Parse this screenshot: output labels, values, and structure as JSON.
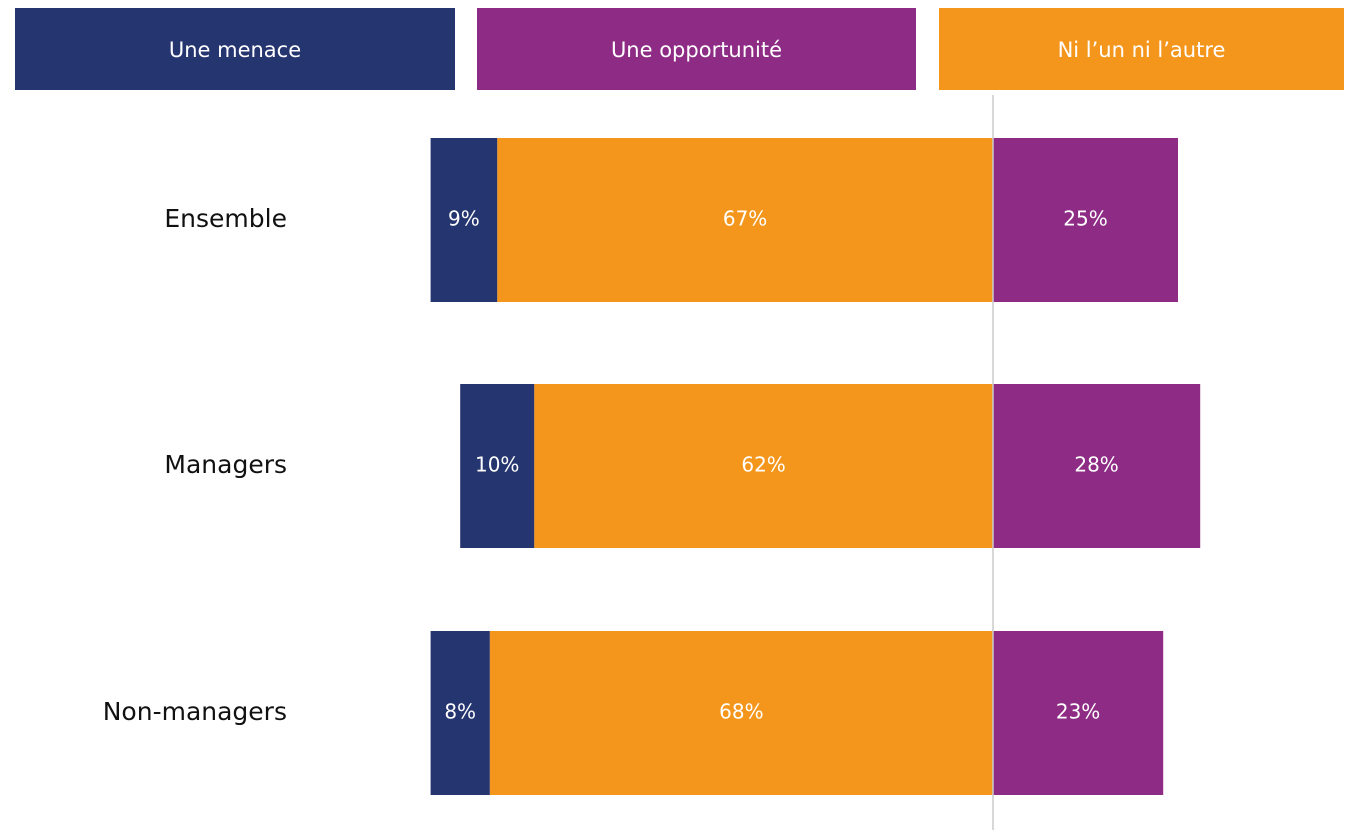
{
  "chart_data": {
    "type": "diverging_bar",
    "categories": [
      "Ensemble",
      "Managers",
      "Non-managers"
    ],
    "series": [
      {
        "name": "Une menace",
        "color": "#25356f",
        "values": [
          9,
          10,
          8
        ],
        "value_labels": [
          "9%",
          "10%",
          "8%"
        ]
      },
      {
        "name": "Une opportunité",
        "color": "#8e2c85",
        "values": [
          25,
          28,
          23
        ],
        "value_labels": [
          "25%",
          "28%",
          "23%"
        ]
      },
      {
        "name": "Ni l’un ni l’autre",
        "color": "#f4961c",
        "values": [
          67,
          62,
          68
        ],
        "value_labels": [
          "67%",
          "62%",
          "68%"
        ]
      }
    ]
  }
}
